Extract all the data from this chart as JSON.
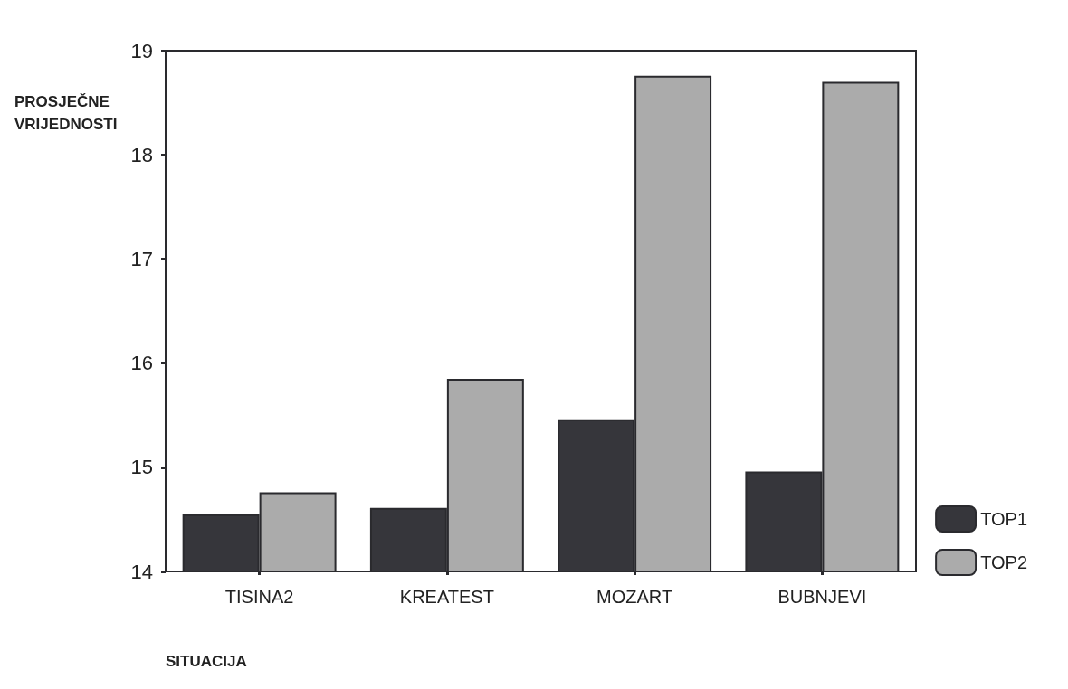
{
  "chart_data": {
    "type": "bar",
    "ylabel": "PROSJEČNE VRIJEDNOSTI",
    "xlabel": "SITUACIJA",
    "categories": [
      "TISINA2",
      "KREATEST",
      "MOZART",
      "BUBNJEVI"
    ],
    "series": [
      {
        "name": "TOP1",
        "color": "#36363b",
        "values": [
          14.55,
          14.61,
          15.46,
          14.96
        ]
      },
      {
        "name": "TOP2",
        "color": "#ababab",
        "values": [
          14.76,
          15.85,
          18.76,
          18.7
        ]
      }
    ],
    "ylim": [
      14,
      19
    ],
    "yticks": [
      14,
      15,
      16,
      17,
      18,
      19
    ],
    "grid": false,
    "legend": "bottom right"
  }
}
